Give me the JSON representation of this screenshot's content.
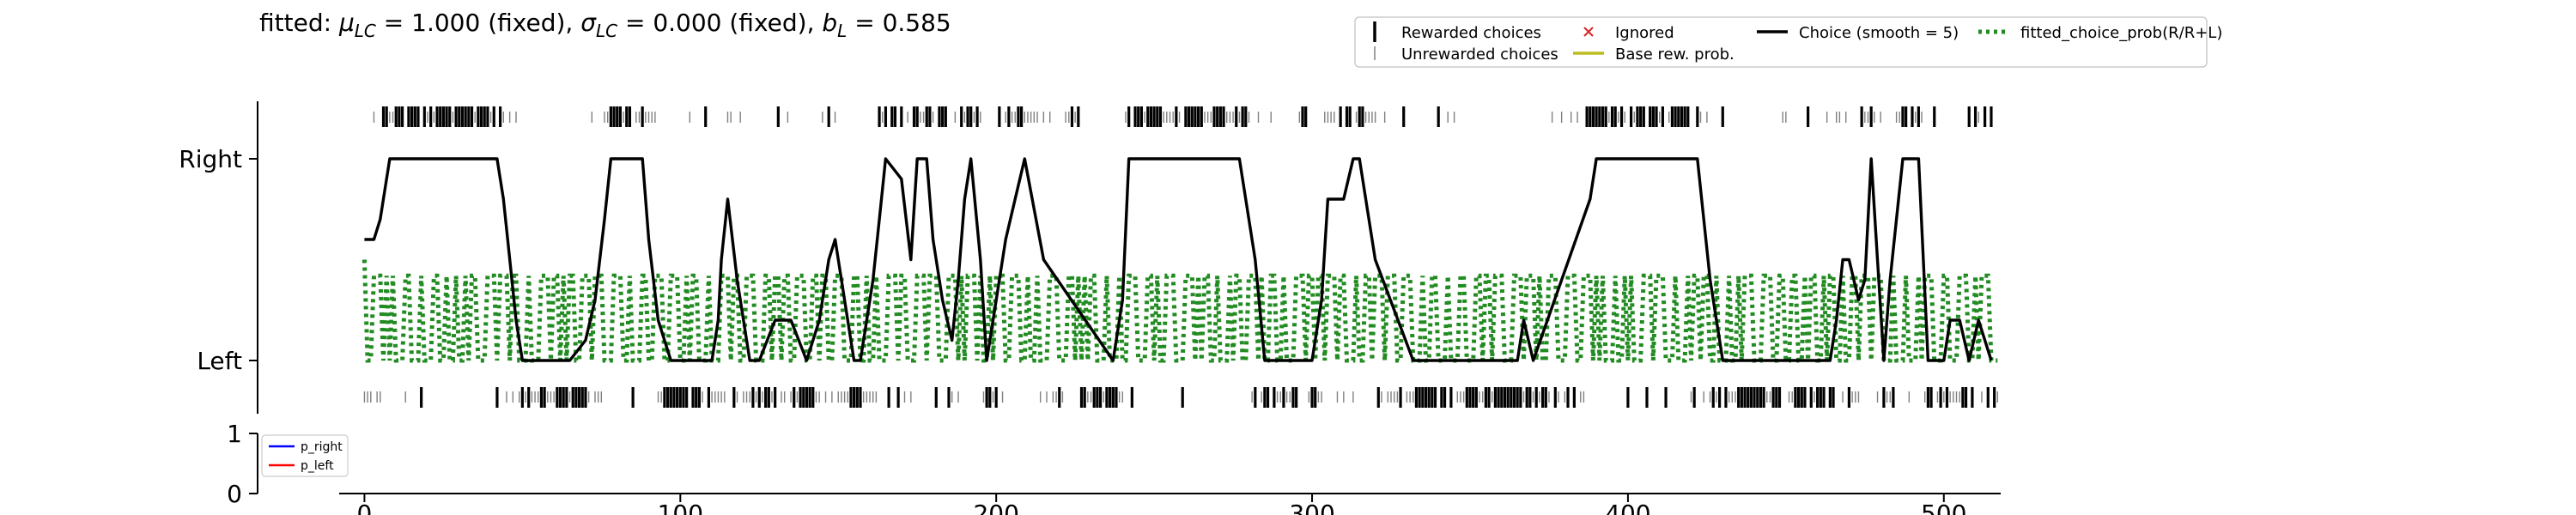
{
  "chart_data": [
    {
      "type": "line",
      "title": "fitted: μLC = 1.000 (fixed), σLC = 0.000 (fixed), bL = 0.585",
      "title_parts": {
        "prefix": "fitted: ",
        "mu_sym": "μ",
        "mu_sub": "LC",
        "mu_val": " = 1.000 (fixed), ",
        "sigma_sym": "σ",
        "sigma_sub": "LC",
        "sigma_val": " = 0.000 (fixed), ",
        "b_sym": "b",
        "b_sub": "L",
        "b_val": " = 0.585"
      },
      "xlim": [
        -8,
        518
      ],
      "ylim": [
        -0.3,
        1.3
      ],
      "y_ticks": [
        {
          "value": 0,
          "label": "Left"
        },
        {
          "value": 1,
          "label": "Right"
        }
      ],
      "grid": false,
      "legend_position": "top-right",
      "legend": [
        {
          "label": "Rewarded choices",
          "marker": "thick-tick",
          "color": "#000000"
        },
        {
          "label": "Unrewarded choices",
          "marker": "thin-tick",
          "color": "#808080"
        },
        {
          "label": "Ignored",
          "marker": "x",
          "color": "#d62728"
        },
        {
          "label": "Base rew. prob.",
          "marker": "line",
          "color": "#bcbd22"
        },
        {
          "label": "Choice (smooth = 5)",
          "marker": "line",
          "color": "#000000"
        },
        {
          "label": "fitted_choice_prob(R/R+L)",
          "marker": "dotted",
          "color": "#228b22"
        }
      ],
      "series": [
        {
          "name": "Choice (smooth = 5)",
          "color": "#000000",
          "style": "solid",
          "x": [
            0,
            3,
            5,
            8,
            42,
            44,
            46,
            48,
            50,
            60,
            65,
            70,
            73,
            76,
            78,
            88,
            90,
            93,
            97,
            105,
            110,
            112,
            113,
            115,
            118,
            122,
            125,
            130,
            135,
            140,
            144,
            147,
            149,
            152,
            155,
            157,
            158,
            161,
            163,
            165,
            170,
            173,
            175,
            178,
            180,
            183,
            186,
            188,
            190,
            192,
            195,
            197,
            200,
            203,
            206,
            209,
            215,
            237,
            240,
            242,
            277,
            282,
            285,
            300,
            303,
            305,
            310,
            313,
            315,
            320,
            332,
            336,
            340,
            345,
            350,
            360,
            365,
            367,
            370,
            388,
            390,
            392,
            422,
            426,
            430,
            440,
            450,
            455,
            464,
            466,
            468,
            470,
            473,
            475,
            477,
            479,
            481,
            483,
            487,
            492,
            495,
            500,
            502,
            505,
            508,
            511,
            515
          ],
          "y": [
            0.6,
            0.6,
            0.7,
            1.0,
            1.0,
            0.8,
            0.5,
            0.2,
            0.0,
            0.0,
            0.0,
            0.1,
            0.3,
            0.7,
            1.0,
            1.0,
            0.6,
            0.2,
            0.0,
            0.0,
            0.0,
            0.2,
            0.5,
            0.8,
            0.4,
            0.0,
            0.0,
            0.2,
            0.2,
            0.0,
            0.2,
            0.5,
            0.6,
            0.3,
            0.0,
            0.0,
            0.1,
            0.4,
            0.7,
            1.0,
            0.9,
            0.5,
            1.0,
            1.0,
            0.6,
            0.3,
            0.1,
            0.4,
            0.8,
            1.0,
            0.5,
            0.0,
            0.3,
            0.6,
            0.8,
            1.0,
            0.5,
            0.0,
            0.3,
            1.0,
            1.0,
            0.5,
            0.0,
            0.0,
            0.3,
            0.8,
            0.8,
            1.0,
            1.0,
            0.5,
            0.0,
            0.0,
            0.0,
            0.0,
            0.0,
            0.0,
            0.0,
            0.2,
            0.0,
            0.8,
            1.0,
            1.0,
            1.0,
            0.4,
            0.0,
            0.0,
            0.0,
            0.0,
            0.0,
            0.2,
            0.5,
            0.5,
            0.3,
            0.4,
            1.0,
            0.5,
            0.0,
            0.4,
            1.0,
            1.0,
            0.0,
            0.0,
            0.2,
            0.2,
            0.0,
            0.2,
            0.0
          ]
        },
        {
          "name": "fitted_choice_prob(R/R+L)",
          "color": "#228b22",
          "style": "dotted",
          "n": 518,
          "low": 0.0,
          "high": 0.42,
          "start": 0.5
        }
      ]
    },
    {
      "type": "line",
      "xlim": [
        -8,
        518
      ],
      "ylim": [
        0,
        1
      ],
      "y_ticks": [
        {
          "value": 0,
          "label": "0"
        },
        {
          "value": 1,
          "label": "1"
        }
      ],
      "x_ticks": [
        {
          "value": 0,
          "label": "0"
        },
        {
          "value": 100,
          "label": "100"
        },
        {
          "value": 200,
          "label": "200"
        },
        {
          "value": 300,
          "label": "300"
        },
        {
          "value": 400,
          "label": "400"
        },
        {
          "value": 500,
          "label": "500"
        }
      ],
      "legend_position": "top-left",
      "legend": [
        {
          "label": "p_right",
          "color": "#0000ff"
        },
        {
          "label": "p_left",
          "color": "#ff0000"
        }
      ]
    }
  ]
}
